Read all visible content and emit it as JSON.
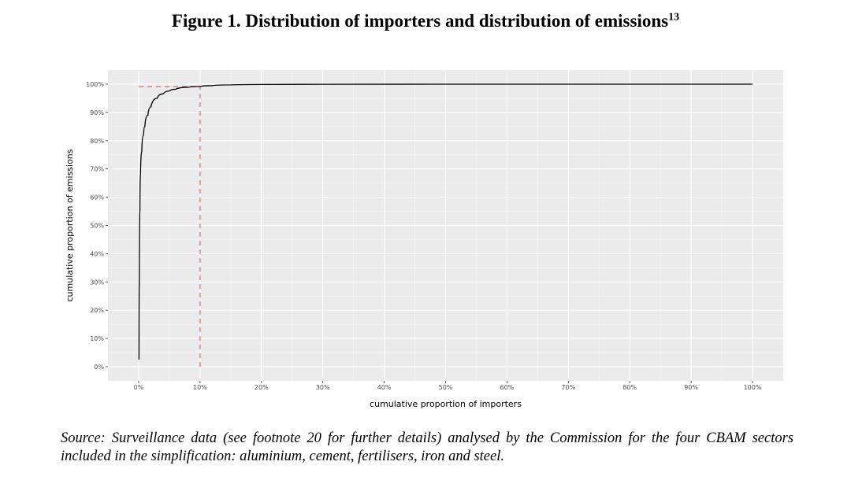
{
  "figure": {
    "title": "Figure 1. Distribution of importers and distribution of emissions",
    "footnote_ref": "13",
    "source": "Source: Surveillance data (see footnote 20 for further details) analysed by the Commission for the four CBAM sectors included in the simplification: aluminium, cement, fertilisers, iron and steel."
  },
  "chart_data": {
    "type": "line",
    "title": "Figure 1. Distribution of importers and distribution of emissions",
    "xlabel": "cumulative proportion of importers",
    "ylabel": "cumulative proportion of emissions",
    "xlim": [
      0,
      100
    ],
    "ylim": [
      0,
      100
    ],
    "x_ticks": [
      "0%",
      "10%",
      "20%",
      "30%",
      "40%",
      "50%",
      "60%",
      "70%",
      "80%",
      "90%",
      "100%"
    ],
    "y_ticks": [
      "0%",
      "10%",
      "20%",
      "30%",
      "40%",
      "50%",
      "60%",
      "70%",
      "80%",
      "90%",
      "100%"
    ],
    "grid": true,
    "background": "#ebebeb",
    "series": [
      {
        "name": "cumulative emissions",
        "color": "#000000",
        "x": [
          0.05,
          0.1,
          0.2,
          0.3,
          0.5,
          0.8,
          1.0,
          1.5,
          2,
          3,
          4,
          5,
          6,
          8,
          10,
          12,
          15,
          20,
          30,
          50,
          100
        ],
        "y": [
          2.5,
          30,
          55,
          68,
          76,
          82,
          85,
          89,
          92,
          95,
          96.6,
          97.6,
          98.2,
          98.9,
          99.2,
          99.5,
          99.75,
          99.9,
          99.97,
          100,
          100
        ]
      }
    ],
    "reference_lines": [
      {
        "name": "10% of importers",
        "type": "vertical",
        "x": 10,
        "y_from": 0,
        "y_to": 99.2,
        "color": "#f8766d",
        "style": "dashed"
      },
      {
        "name": "99% of emissions",
        "type": "horizontal",
        "y": 99.2,
        "x_from": 0,
        "x_to": 10,
        "color": "#f8766d",
        "style": "dashed"
      }
    ]
  }
}
